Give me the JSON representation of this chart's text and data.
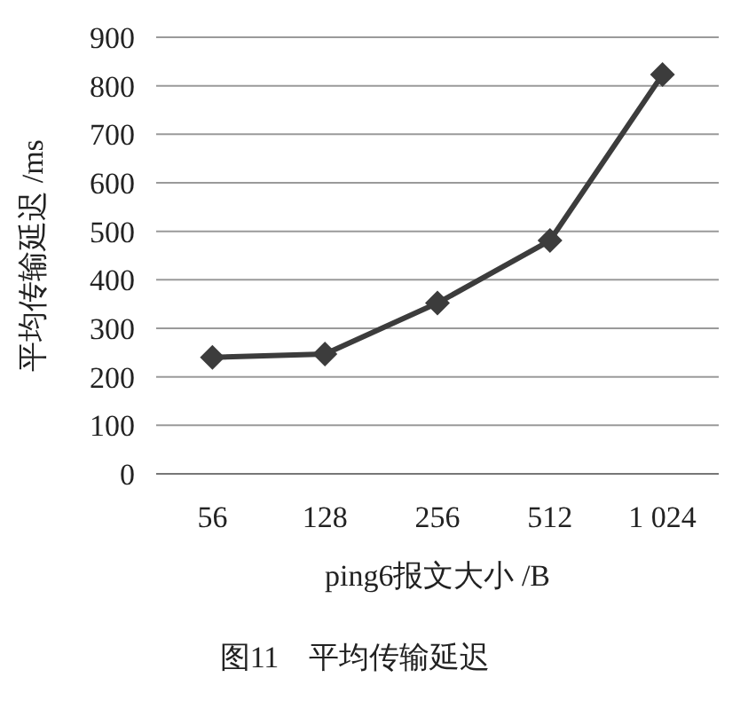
{
  "chart_data": {
    "type": "line",
    "title": "图11　平均传输延迟",
    "xlabel": "ping6报文大小 /B",
    "ylabel": "平均传输延迟 /ms",
    "categories": [
      "56",
      "128",
      "256",
      "512",
      "1 024"
    ],
    "series": [
      {
        "color": "#3c3c3c",
        "values": [
          240,
          247,
          352,
          481,
          823
        ]
      }
    ],
    "ylim": [
      0,
      900
    ],
    "yticks": [
      0,
      100,
      200,
      300,
      400,
      500,
      600,
      700,
      800,
      900
    ],
    "grid": "y",
    "marker": "diamond",
    "line_style": "solid"
  }
}
